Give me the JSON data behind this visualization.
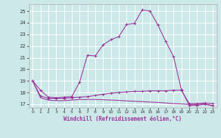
{
  "title": "",
  "xlabel": "Windchill (Refroidissement éolien,°C)",
  "bg_color": "#cce8e8",
  "grid_color": "#ffffff",
  "line_color": "#993399",
  "xlim": [
    -0.5,
    23.5
  ],
  "ylim": [
    16.7,
    25.6
  ],
  "xticks": [
    0,
    1,
    2,
    3,
    4,
    5,
    6,
    7,
    8,
    9,
    10,
    11,
    12,
    13,
    14,
    15,
    16,
    17,
    18,
    19,
    20,
    21,
    22,
    23
  ],
  "yticks": [
    17,
    18,
    19,
    20,
    21,
    22,
    23,
    24,
    25
  ],
  "curve1_x": [
    0,
    1,
    2,
    3,
    4,
    5,
    6,
    7,
    8,
    9,
    10,
    11,
    12,
    13,
    14,
    15,
    16,
    17,
    18,
    19,
    20,
    21,
    22,
    23
  ],
  "curve1_y": [
    19.0,
    18.2,
    17.6,
    17.55,
    17.6,
    17.65,
    18.9,
    21.2,
    21.15,
    22.1,
    22.55,
    22.8,
    23.85,
    23.95,
    25.1,
    25.0,
    23.8,
    22.4,
    21.1,
    18.25,
    16.9,
    16.9,
    17.0,
    16.85
  ],
  "curve2_x": [
    0,
    1,
    2,
    3,
    4,
    5,
    6,
    7,
    8,
    9,
    10,
    11,
    12,
    13,
    14,
    15,
    16,
    17,
    18,
    19,
    20,
    21,
    22,
    23
  ],
  "curve2_y": [
    19.0,
    17.7,
    17.5,
    17.5,
    17.5,
    17.55,
    17.6,
    17.65,
    17.75,
    17.85,
    17.95,
    18.0,
    18.05,
    18.1,
    18.1,
    18.15,
    18.15,
    18.15,
    18.2,
    18.2,
    17.05,
    17.05,
    17.1,
    17.05
  ],
  "curve3_x": [
    0,
    1,
    2,
    3,
    4,
    5,
    6,
    7,
    8,
    9,
    10,
    11,
    12,
    13,
    14,
    15,
    16,
    17,
    18,
    19,
    20,
    21,
    22,
    23
  ],
  "curve3_y": [
    19.0,
    17.55,
    17.35,
    17.3,
    17.3,
    17.35,
    17.4,
    17.4,
    17.4,
    17.38,
    17.35,
    17.32,
    17.28,
    17.25,
    17.22,
    17.18,
    17.15,
    17.1,
    17.05,
    17.02,
    16.98,
    16.98,
    17.02,
    16.88
  ]
}
